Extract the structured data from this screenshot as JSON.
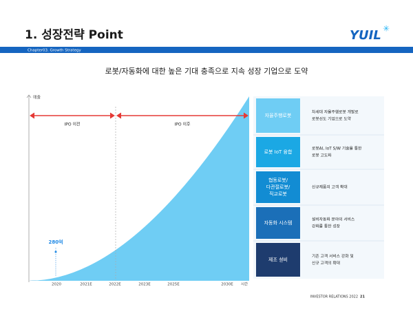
{
  "header": {
    "title": "1. 성장전략 Point",
    "logo": "YUIL",
    "chapter": "Chapter03. Growth Strategy"
  },
  "subtitle": "로봇/자동화에 대한 높은 기대 충족으로 지속 성장 기업으로 도약",
  "chart": {
    "axis_label": "매출",
    "time_label": "시간",
    "periods": [
      "IPO 이전",
      "IPO 이후"
    ],
    "annotation": "280억",
    "x_labels": [
      "2020",
      "2021E",
      "2022E",
      "2023E",
      "2025E",
      "2030E"
    ]
  },
  "table": {
    "rows": [
      {
        "label": [
          "자율주행로봇"
        ],
        "description": [
          "차세대 자율주행로봇 개발로",
          "로봇선도 기업으로 도약"
        ]
      },
      {
        "label": [
          "로봇 IoT 융합"
        ],
        "description": [
          "로봇AI, IoT S/W 기술을 통한",
          "로봇 고도화"
        ]
      },
      {
        "label": [
          "협동로봇/",
          "다관절로봇/",
          "직교로봇"
        ],
        "description": [
          "신규제품의 고객 확대"
        ]
      },
      {
        "label": [
          "자동화 시스템"
        ],
        "description": [
          "설비자동화 분야의 서비스",
          "강화를 통한 성장"
        ]
      },
      {
        "label": [
          "제조 설비"
        ],
        "description": [
          "기존 고객 서비스 강화 및",
          "신규 고객의 확대"
        ]
      }
    ]
  },
  "footer": {
    "text": "INVESTOR RELATIONS 2022",
    "page": "21"
  }
}
